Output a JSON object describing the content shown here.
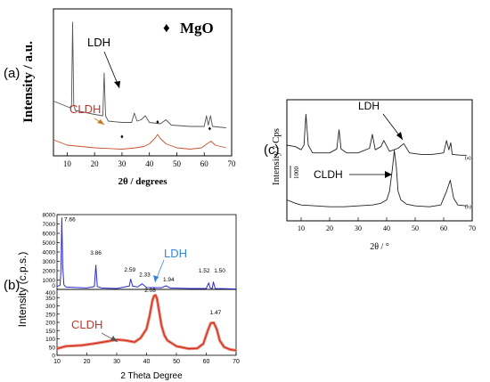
{
  "panel_labels": [
    "(a)",
    "(b)",
    "(c)"
  ],
  "chart_data": [
    {
      "type": "line",
      "panel": "(a)",
      "xlabel": "2θ / degrees",
      "ylabel": "Intensity / a.u.",
      "xlim": [
        5,
        70
      ],
      "xticks": [
        10,
        20,
        30,
        40,
        50,
        60,
        70
      ],
      "yticks_labeled": false,
      "legend": [
        {
          "marker": "♦",
          "label": "MgO"
        }
      ],
      "series": [
        {
          "name": "LDH",
          "color": "#555555",
          "x": [
            5,
            11,
            11.6,
            12,
            12.4,
            13,
            20,
            23,
            23.5,
            24,
            24.5,
            25,
            30,
            33.5,
            34.5,
            35.5,
            37,
            38.5,
            40,
            44,
            46,
            48,
            55,
            60,
            60.8,
            61.5,
            62.3,
            63,
            68
          ],
          "y": [
            41,
            36,
            38,
            100,
            38,
            34,
            31,
            30,
            62,
            30,
            28,
            26,
            25,
            25,
            32,
            26,
            27,
            30,
            25,
            24,
            27,
            23,
            22,
            22,
            30,
            23,
            30,
            22,
            21
          ]
        },
        {
          "name": "CLDH",
          "color": "#c8502e",
          "x": [
            5,
            10,
            20,
            30,
            35,
            38,
            40,
            42,
            43,
            44,
            46,
            50,
            55,
            59,
            61,
            62.5,
            64,
            68
          ],
          "y": [
            12,
            8,
            6,
            5,
            6,
            7,
            9,
            13,
            16,
            13,
            9,
            6,
            5,
            6,
            9,
            11,
            8,
            6
          ]
        }
      ],
      "annotations": [
        {
          "text": "LDH",
          "color": "#000000"
        },
        {
          "text": "CLDH",
          "color": "#c0392b"
        },
        {
          "text": "MgO markers",
          "x": [
            30,
            43,
            62
          ]
        }
      ]
    },
    {
      "type": "line",
      "panel": "(b)",
      "xlabel": "2 Theta Degree",
      "ylabel": "Intensity (c.p.s.)",
      "xlim": [
        10,
        70
      ],
      "xticks": [
        10,
        20,
        30,
        40,
        50,
        60,
        70
      ],
      "upper_ylim": [
        0,
        8000
      ],
      "upper_yticks": [
        0,
        1000,
        2000,
        3000,
        4000,
        5000,
        6000,
        7000,
        8000
      ],
      "lower_ylim": [
        0,
        400
      ],
      "lower_yticks": [
        0,
        50,
        100,
        150,
        200,
        250,
        300,
        350,
        400
      ],
      "series": [
        {
          "name": "LDH",
          "color": "#2b2bd6",
          "x": [
            10,
            11.0,
            11.3,
            11.6,
            11.9,
            12.3,
            13,
            20,
            22.5,
            23,
            23.5,
            25,
            30,
            34.2,
            34.7,
            35.3,
            37,
            38.5,
            40,
            45,
            46.5,
            48,
            55,
            60,
            60.8,
            61.3,
            62,
            62.4,
            63,
            70
          ],
          "y": [
            300,
            450,
            2000,
            7660,
            2500,
            500,
            250,
            150,
            300,
            2600,
            300,
            150,
            100,
            350,
            1100,
            350,
            250,
            600,
            200,
            180,
            380,
            150,
            100,
            100,
            700,
            150,
            100,
            800,
            100,
            50
          ]
        },
        {
          "name": "CLDH",
          "color": "#d12b1f",
          "x": [
            10,
            13,
            18,
            22,
            27,
            30,
            33,
            36,
            38,
            40,
            41,
            42,
            42.5,
            43,
            43.5,
            44,
            45,
            46,
            47,
            50,
            54,
            57,
            59,
            60.5,
            61.5,
            62.5,
            63.5,
            64.5,
            66,
            68,
            70
          ],
          "y": [
            40,
            55,
            60,
            70,
            85,
            95,
            90,
            80,
            105,
            160,
            240,
            335,
            360,
            365,
            345,
            290,
            180,
            120,
            90,
            55,
            40,
            42,
            70,
            150,
            195,
            198,
            160,
            90,
            50,
            35,
            30
          ]
        }
      ],
      "peak_labels": [
        {
          "x": 11.6,
          "text": "7.66"
        },
        {
          "x": 23,
          "text": "3.86"
        },
        {
          "x": 34.7,
          "text": "2.59"
        },
        {
          "x": 38.5,
          "text": "2.33"
        },
        {
          "x": 46.5,
          "text": "1.94"
        },
        {
          "x": 60.8,
          "text": "1.52"
        },
        {
          "x": 62.4,
          "text": "1.50"
        },
        {
          "x": 43,
          "text": "2.08"
        },
        {
          "x": 62.5,
          "text": "1.47"
        }
      ],
      "annotations": [
        {
          "text": "LDH",
          "color": "#2e86de"
        },
        {
          "text": "CLDH",
          "color": "#c0392b"
        }
      ]
    },
    {
      "type": "line",
      "panel": "(c)",
      "xlabel": "2θ / °",
      "ylabel": "Intensity / Cps",
      "xlim": [
        5,
        70
      ],
      "xticks": [
        10,
        20,
        30,
        40,
        50,
        60,
        70
      ],
      "scale_bar": "1000",
      "series": [
        {
          "name": "(a)",
          "color": "#222222",
          "x": [
            5,
            8,
            10,
            11,
            11.7,
            12.5,
            14,
            20,
            22.5,
            23.3,
            24,
            26,
            30,
            34,
            35,
            36,
            38,
            39,
            41,
            44,
            46,
            48,
            52,
            56,
            60,
            61,
            61.8,
            62.5,
            63,
            66,
            68
          ],
          "y": [
            110,
            108,
            104,
            110,
            150,
            110,
            100,
            100,
            105,
            130,
            105,
            100,
            100,
            106,
            124,
            104,
            108,
            116,
            102,
            106,
            112,
            100,
            98,
            98,
            100,
            116,
            104,
            113,
            98,
            97,
            97
          ]
        },
        {
          "name": "(b)",
          "color": "#222222",
          "x": [
            5,
            8,
            10,
            15,
            20,
            25,
            30,
            35,
            38,
            40,
            41,
            42,
            42.7,
            43.4,
            44,
            45,
            47,
            50,
            55,
            59,
            61,
            62.3,
            63.5,
            65,
            68
          ],
          "y": [
            22,
            18,
            16,
            15,
            14,
            14,
            15,
            16,
            18,
            22,
            32,
            58,
            80,
            60,
            32,
            22,
            17,
            15,
            14,
            16,
            32,
            45,
            24,
            16,
            15
          ]
        }
      ],
      "annotations": [
        {
          "text": "LDH",
          "color": "#000000"
        },
        {
          "text": "CLDH",
          "color": "#000000"
        }
      ]
    }
  ]
}
